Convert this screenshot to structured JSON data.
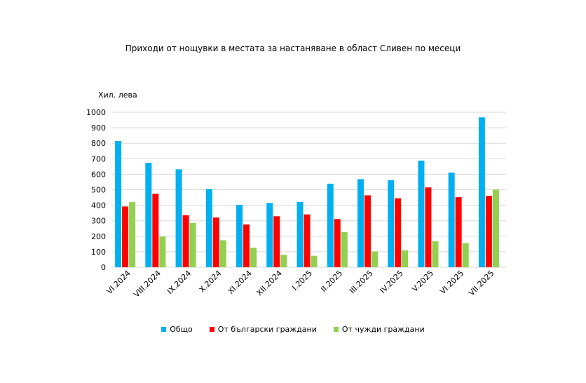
{
  "chart_data": {
    "type": "bar",
    "title": "Приходи от нощувки в местата за настаняване в област Сливен по месеци",
    "ylabel": "Хил. лева",
    "xlabel": "",
    "ylim": [
      0,
      1000
    ],
    "yticks": [
      0,
      100,
      200,
      300,
      400,
      500,
      600,
      700,
      800,
      900,
      1000
    ],
    "grid": true,
    "legend_position": "bottom",
    "categories": [
      "VI.2024",
      "VIII.2024",
      "IX.2024",
      "X.2024",
      "XI.2024",
      "XII.2024",
      "I.2025",
      "II.2025",
      "III.2025",
      "IV.2025",
      "V.2025",
      "VI.2025",
      "VII.2025"
    ],
    "series": [
      {
        "name": "Общо",
        "color": "#00b0f0",
        "values": [
          815,
          674,
          632,
          505,
          403,
          415,
          421,
          539,
          568,
          562,
          688,
          611,
          967
        ]
      },
      {
        "name": "От български граждани",
        "color": "#ff0000",
        "values": [
          392,
          474,
          336,
          321,
          276,
          329,
          341,
          311,
          464,
          445,
          515,
          452,
          461
        ]
      },
      {
        "name": "От чужди граждани",
        "color": "#92d050",
        "values": [
          420,
          198,
          286,
          174,
          126,
          80,
          74,
          226,
          102,
          109,
          168,
          156,
          502
        ]
      }
    ]
  }
}
